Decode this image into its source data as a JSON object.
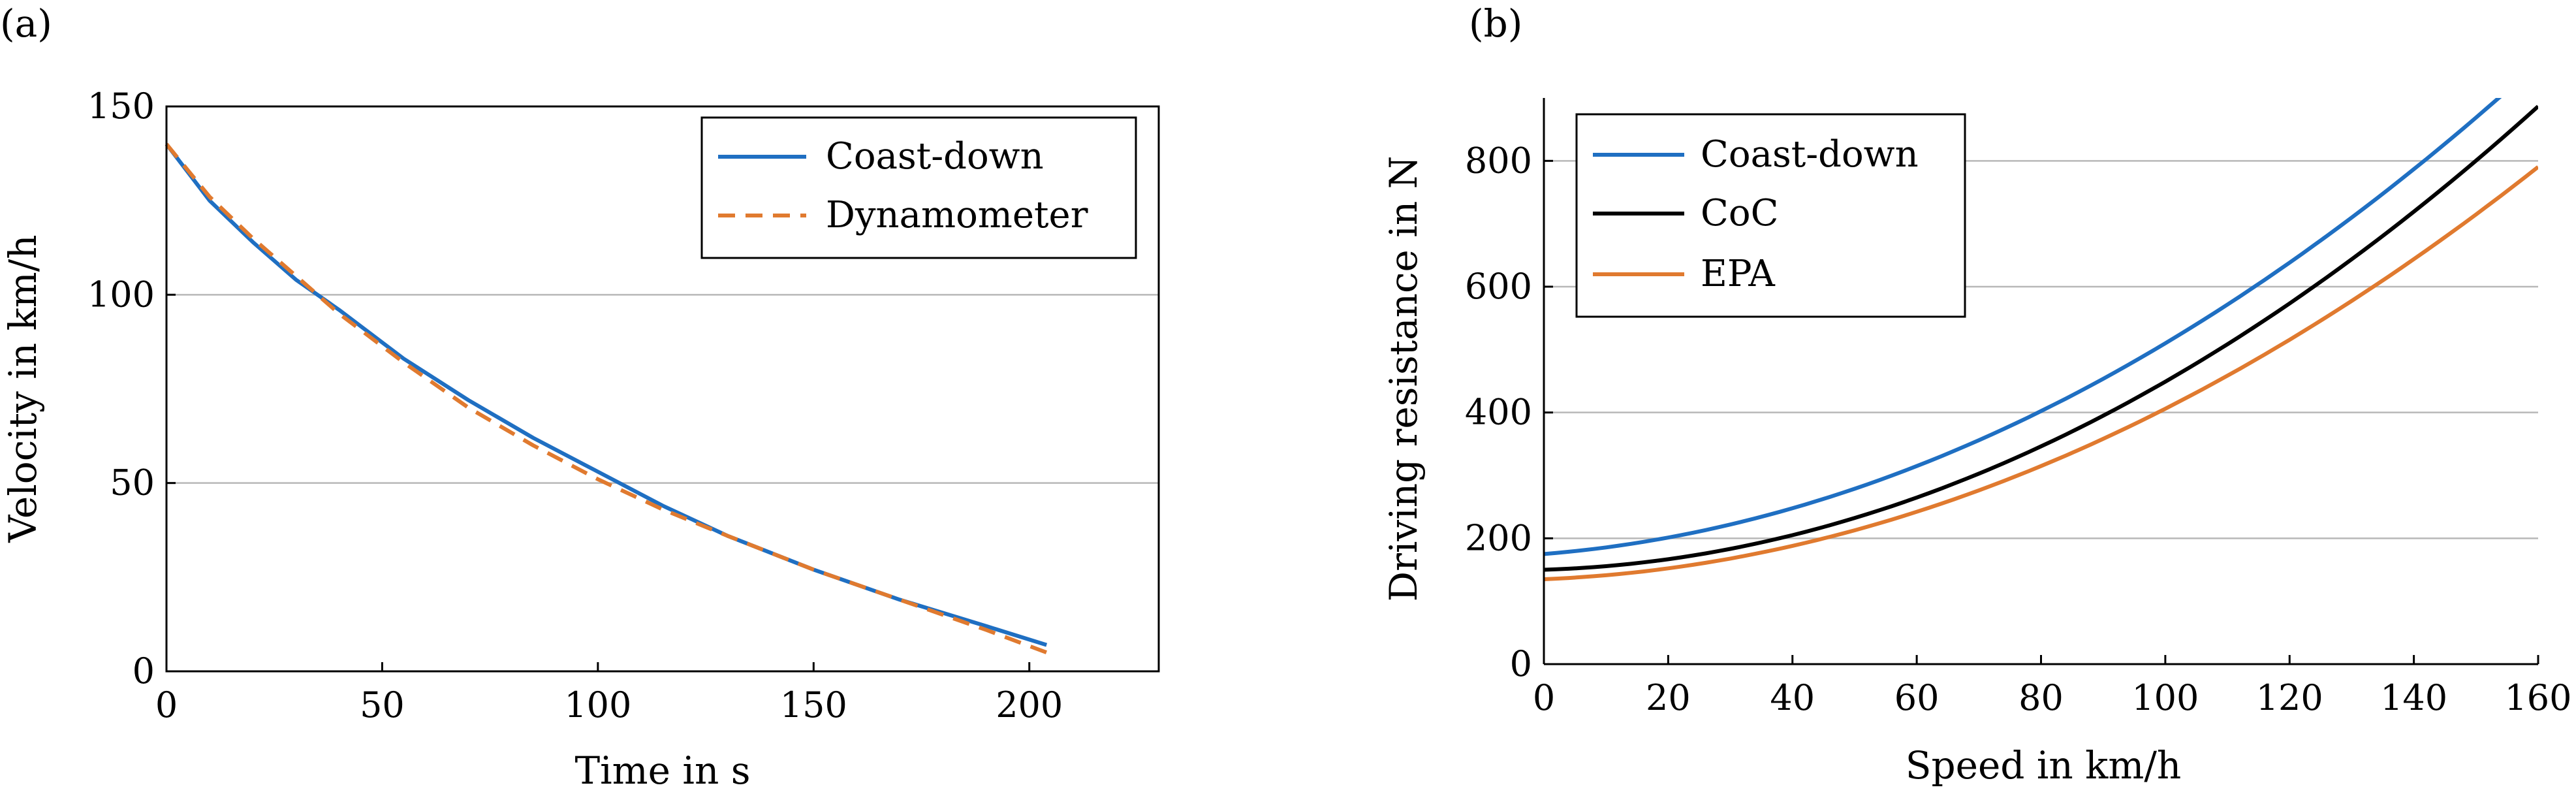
{
  "chart_data": [
    {
      "type": "line",
      "panel_label": "(a)",
      "title": "",
      "xlabel": "Time in s",
      "ylabel": "Velocity in km/h",
      "xlim": [
        0,
        230
      ],
      "ylim": [
        0,
        150
      ],
      "xticks": [
        "0",
        "50",
        "100",
        "150",
        "200"
      ],
      "yticks": [
        "0",
        "50",
        "100",
        "150"
      ],
      "grid": "horizontal",
      "legend_position": "top-right",
      "series": [
        {
          "name": "Coast-down",
          "color": "#1f6fc2",
          "style": "solid",
          "x": [
            0,
            10,
            20,
            30,
            40,
            55,
            70,
            85,
            100,
            115,
            130,
            150,
            170,
            190,
            204
          ],
          "y": [
            140,
            125,
            114,
            104,
            96,
            83,
            72,
            62,
            53,
            44,
            36,
            27,
            19,
            12,
            7
          ]
        },
        {
          "name": "Dynamometer",
          "color": "#e07a2f",
          "style": "dashed",
          "x": [
            0,
            10,
            20,
            30,
            40,
            55,
            70,
            85,
            100,
            115,
            130,
            150,
            170,
            190,
            204
          ],
          "y": [
            140,
            126,
            115,
            105,
            95,
            82,
            70,
            60,
            51,
            43,
            36,
            27,
            19,
            11,
            5
          ]
        }
      ]
    },
    {
      "type": "line",
      "panel_label": "(b)",
      "title": "",
      "xlabel": "Speed in km/h",
      "ylabel": "Driving resistance in N",
      "xlim": [
        0,
        160
      ],
      "ylim": [
        0,
        900
      ],
      "xticks": [
        "0",
        "20",
        "40",
        "60",
        "80",
        "100",
        "120",
        "140",
        "160"
      ],
      "yticks": [
        "0",
        "200",
        "400",
        "600",
        "800"
      ],
      "grid": "horizontal",
      "legend_position": "top-left",
      "series": [
        {
          "name": "Coast-down",
          "color": "#1f6fc2",
          "style": "solid",
          "f0": 175,
          "f1": 0.8,
          "f2": 0.0255
        },
        {
          "name": "CoC",
          "color": "#000000",
          "style": "solid",
          "f0": 150,
          "f1": 0.3,
          "f2": 0.0269
        },
        {
          "name": "EPA",
          "color": "#e07a2f",
          "style": "solid",
          "f0": 135,
          "f1": 0.4,
          "f2": 0.0231
        }
      ]
    }
  ]
}
